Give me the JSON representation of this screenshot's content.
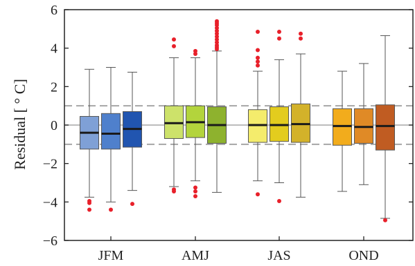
{
  "chart_data": {
    "type": "box",
    "title": "",
    "xlabel": "",
    "ylabel": "Residual [ ° C]",
    "ylim": [
      -6,
      6
    ],
    "yticks": [
      -6,
      -4,
      -2,
      0,
      2,
      4,
      6
    ],
    "reference_lines": {
      "solid": [
        0
      ],
      "dashed": [
        1,
        -1
      ]
    },
    "categories": [
      "JFM",
      "AMJ",
      "JAS",
      "OND"
    ],
    "groups": [
      {
        "category": "JFM",
        "boxes": [
          {
            "color": "#7fa0d6",
            "whisker_low": -3.75,
            "q1": -1.25,
            "median": -0.4,
            "q3": 0.45,
            "whisker_high": 2.9,
            "outliers": [
              -3.95,
              -4.05,
              -4.4
            ]
          },
          {
            "color": "#4f80cc",
            "whisker_low": -4.0,
            "q1": -1.25,
            "median": -0.45,
            "q3": 0.6,
            "whisker_high": 3.0,
            "outliers": [
              -4.4
            ]
          },
          {
            "color": "#2155b0",
            "whisker_low": -3.4,
            "q1": -1.15,
            "median": -0.2,
            "q3": 0.7,
            "whisker_high": 2.75,
            "outliers": [
              -4.1
            ]
          }
        ]
      },
      {
        "category": "AMJ",
        "boxes": [
          {
            "color": "#cde26a",
            "whisker_low": -3.2,
            "q1": -0.7,
            "median": 0.1,
            "q3": 1.0,
            "whisker_high": 3.5,
            "outliers": [
              4.1,
              4.45,
              -3.35,
              -3.45
            ]
          },
          {
            "color": "#b3d43c",
            "whisker_low": -2.9,
            "q1": -0.65,
            "median": 0.15,
            "q3": 1.0,
            "whisker_high": 3.5,
            "outliers": [
              3.7,
              3.85,
              -3.25,
              -3.45,
              -3.7
            ]
          },
          {
            "color": "#8eb22e",
            "whisker_low": -3.5,
            "q1": -0.95,
            "median": 0.0,
            "q3": 0.95,
            "whisker_high": 3.85,
            "outliers": [
              3.95,
              4.05,
              4.15,
              4.3,
              4.45,
              4.6,
              4.75,
              4.9,
              5.05,
              5.2,
              5.3,
              5.4
            ]
          }
        ]
      },
      {
        "category": "JAS",
        "boxes": [
          {
            "color": "#f4ec6c",
            "whisker_low": -2.9,
            "q1": -0.9,
            "median": 0.0,
            "q3": 0.8,
            "whisker_high": 2.8,
            "outliers": [
              3.1,
              3.3,
              3.5,
              3.9,
              4.85,
              -3.6
            ]
          },
          {
            "color": "#e3cc1e",
            "whisker_low": -3.0,
            "q1": -0.85,
            "median": 0.0,
            "q3": 0.95,
            "whisker_high": 3.4,
            "outliers": [
              4.5,
              4.85,
              -3.95
            ]
          },
          {
            "color": "#d3b22a",
            "whisker_low": -3.75,
            "q1": -0.9,
            "median": 0.05,
            "q3": 1.1,
            "whisker_high": 3.7,
            "outliers": [
              4.5,
              4.75
            ]
          }
        ]
      },
      {
        "category": "OND",
        "boxes": [
          {
            "color": "#f2ac1c",
            "whisker_low": -3.45,
            "q1": -1.05,
            "median": -0.05,
            "q3": 0.85,
            "whisker_high": 2.8,
            "outliers": []
          },
          {
            "color": "#e08a26",
            "whisker_low": -3.1,
            "q1": -0.95,
            "median": -0.1,
            "q3": 0.85,
            "whisker_high": 3.2,
            "outliers": []
          },
          {
            "color": "#c05c22",
            "whisker_low": -4.85,
            "q1": -1.3,
            "median": -0.05,
            "q3": 1.05,
            "whisker_high": 4.65,
            "outliers": [
              -4.95
            ]
          }
        ]
      }
    ],
    "colors": {
      "outlier": "#e8202a",
      "median": "#1a1a1a",
      "reference": "#a6a6a6",
      "whisker": "#555555"
    }
  }
}
